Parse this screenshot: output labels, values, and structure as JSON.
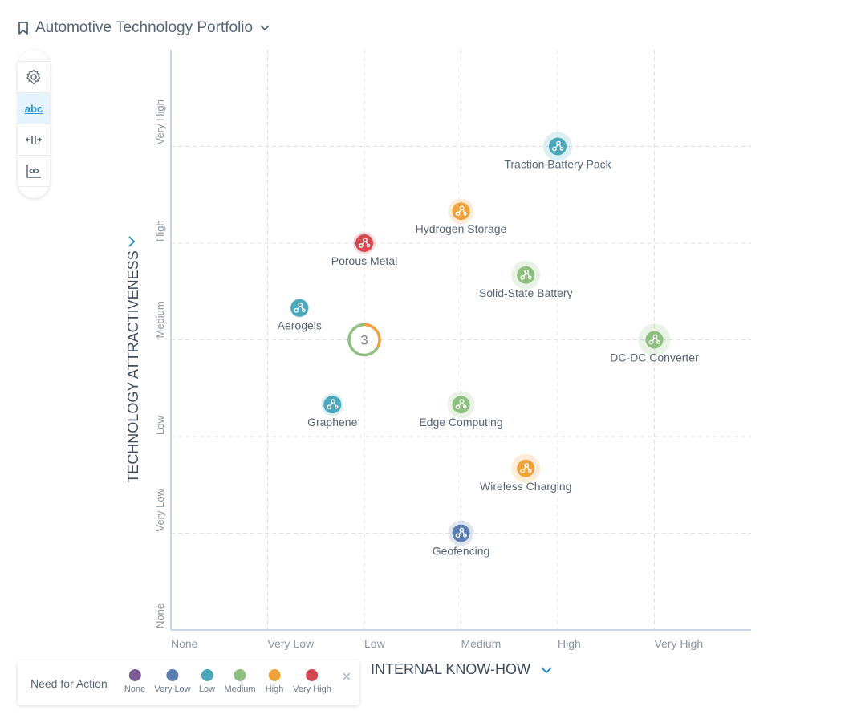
{
  "header": {
    "title": "Automotive Technology Portfolio",
    "icon": "bookmark-icon",
    "dropdown_icon": "chevron-down-icon"
  },
  "toolbar": {
    "items": [
      {
        "icon": "gear-icon"
      },
      {
        "label": "abc",
        "icon": "labels-icon",
        "active": true
      },
      {
        "icon": "spread-icon"
      },
      {
        "icon": "chart-eye-icon"
      }
    ]
  },
  "legend": {
    "title": "Need for Action",
    "items": [
      {
        "label": "None",
        "color": "#7b5a97"
      },
      {
        "label": "Very Low",
        "color": "#5b7db1"
      },
      {
        "label": "Low",
        "color": "#4aa8bd"
      },
      {
        "label": "Medium",
        "color": "#8dbf7f"
      },
      {
        "label": "High",
        "color": "#f0a23a"
      },
      {
        "label": "Very High",
        "color": "#d4474f"
      }
    ],
    "close": "×"
  },
  "chart_data": {
    "type": "scatter",
    "xlabel": "INTERNAL KNOW-HOW",
    "ylabel": "TECHNOLOGY ATTRACTIVENESS",
    "x_ticks": [
      "None",
      "Very Low",
      "Low",
      "Medium",
      "High",
      "Very High"
    ],
    "y_ticks": [
      "None",
      "Very Low",
      "Low",
      "Medium",
      "High",
      "Very High"
    ],
    "xlim": [
      0,
      6
    ],
    "ylim": [
      0,
      6
    ],
    "grid": true,
    "points": [
      {
        "name": "Traction Battery Pack",
        "x": 4,
        "y": 5,
        "need": "Low",
        "size": 18
      },
      {
        "name": "Hydrogen Storage",
        "x": 3,
        "y": 4.33,
        "need": "High",
        "size": 16
      },
      {
        "name": "Porous Metal",
        "x": 2,
        "y": 4,
        "need": "Very High",
        "size": 14
      },
      {
        "name": "Solid-State Battery",
        "x": 3.67,
        "y": 3.67,
        "need": "Medium",
        "size": 18
      },
      {
        "name": "Aerogels",
        "x": 1.33,
        "y": 3.33,
        "need": "Low",
        "size": 12
      },
      {
        "name": "DC-DC Converter",
        "x": 5,
        "y": 3,
        "need": "Medium",
        "size": 20
      },
      {
        "name": "Graphene",
        "x": 1.67,
        "y": 2.33,
        "need": "Low",
        "size": 14
      },
      {
        "name": "Edge Computing",
        "x": 3,
        "y": 2.33,
        "need": "Medium",
        "size": 17
      },
      {
        "name": "Wireless Charging",
        "x": 3.67,
        "y": 1.67,
        "need": "High",
        "size": 18
      },
      {
        "name": "Geofencing",
        "x": 3,
        "y": 1,
        "need": "Very Low",
        "size": 16
      }
    ],
    "clusters": [
      {
        "x": 2,
        "y": 3,
        "count": "3",
        "segments": [
          {
            "need": "High",
            "fraction": 0.33
          },
          {
            "need": "Medium",
            "fraction": 0.67
          }
        ]
      }
    ]
  }
}
